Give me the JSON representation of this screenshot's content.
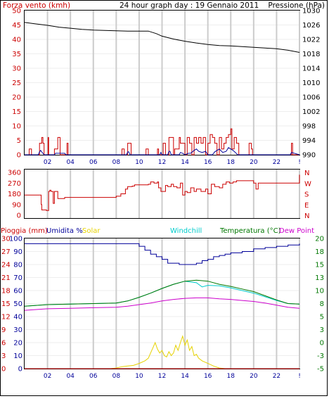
{
  "colors": {
    "wind": "#cc0000",
    "gust": "#cc0000",
    "pressure": "#000000",
    "direction": "#cc0000",
    "humidity": "#000099",
    "solar": "#e6d200",
    "windchill": "#00cccc",
    "temperature": "#007700",
    "dewpoint": "#cc00cc",
    "rain": "#cc0000",
    "grid": "#cccccc",
    "xaxis": "#000099"
  },
  "header": {
    "left_label": "Forza vento (kmh)",
    "title": "24 hour graph day : 19 Gennaio 2011",
    "right_label": "Pressione (hPa)"
  },
  "x_tick_labels": [
    "02",
    "04",
    "06",
    "08",
    "10",
    "12",
    "14",
    "16",
    "18",
    "20",
    "22",
    "!"
  ],
  "panel2": {
    "dir_letters": [
      "N",
      "W",
      "S",
      "E",
      "N"
    ]
  },
  "panel3": {
    "legend": {
      "rain": "Pioggia (mm)",
      "humidity": "Umidita %",
      "solar": "Solar",
      "windchill": "Windchill",
      "temperature": "Temperatura (°C)",
      "dewpoint": "Dew Point"
    }
  },
  "chart_data": [
    {
      "type": "line",
      "title": "24 hour graph day : 19 Gennaio 2011",
      "ylabel": "Forza vento (kmh)",
      "ylabel_right": "Pressione (hPa)",
      "xlim": [
        0,
        24
      ],
      "ylim": [
        0,
        50
      ],
      "ylim_right": [
        990,
        1030
      ],
      "y_ticks": [
        0,
        5,
        10,
        15,
        20,
        25,
        30,
        35,
        40,
        45,
        50
      ],
      "y_ticks_right": [
        990,
        994,
        998,
        1002,
        1006,
        1010,
        1014,
        1018,
        1022,
        1026,
        1030
      ],
      "grid": true,
      "series": [
        {
          "name": "Pressione (hPa)",
          "axis": "right",
          "x": [
            0,
            1,
            2,
            3,
            4,
            5,
            6,
            7,
            8,
            9,
            10,
            10.8,
            11.5,
            12,
            13,
            14,
            15,
            16,
            17,
            18,
            19,
            20,
            21,
            22,
            23,
            24
          ],
          "y": [
            1026.7,
            1026.3,
            1025.9,
            1025.4,
            1025.1,
            1024.8,
            1024.6,
            1024.5,
            1024.4,
            1024.3,
            1024.3,
            1024.3,
            1023.6,
            1022.9,
            1022.1,
            1021.5,
            1021.0,
            1020.6,
            1020.3,
            1020.2,
            1020.0,
            1019.8,
            1019.6,
            1019.4,
            1019.0,
            1018.4
          ]
        },
        {
          "name": "Forza vento (kmh)",
          "x": [
            0,
            0.3,
            0.4,
            0.5,
            0.6,
            1.2,
            1.3,
            1.4,
            1.5,
            1.6,
            1.7,
            2.0,
            2.05,
            2.1,
            2.2,
            2.5,
            2.6,
            2.8,
            2.9,
            3.0,
            3.1,
            3.6,
            3.7,
            3.8,
            4.8,
            6.5,
            8.4,
            8.5,
            8.6,
            8.7,
            8.9,
            9.0,
            9.2,
            9.3,
            10.5,
            10.6,
            10.7,
            10.8,
            11.5,
            11.6,
            11.7,
            12.0,
            12.1,
            12.2,
            12.3,
            12.5,
            12.6,
            12.8,
            13.0,
            13.1,
            13.3,
            13.5,
            13.6,
            13.8,
            14.0,
            14.2,
            14.4,
            14.6,
            14.8,
            15.0,
            15.2,
            15.4,
            15.6,
            15.8,
            16.0,
            16.2,
            16.4,
            16.6,
            16.8,
            17.0,
            17.2,
            17.4,
            17.6,
            17.8,
            18.0,
            18.1,
            18.3,
            18.5,
            18.7,
            18.8,
            19.5,
            19.6,
            19.8,
            19.9,
            23.0,
            23.1,
            23.3,
            23.4,
            24
          ],
          "y": [
            0,
            0,
            2,
            2,
            0,
            0,
            4,
            4,
            6,
            4,
            0,
            0,
            6,
            0,
            0,
            0,
            2,
            2,
            6,
            6,
            0,
            0,
            4,
            0,
            0,
            0,
            0,
            2,
            2,
            0,
            0,
            4,
            4,
            0,
            0,
            2,
            2,
            0,
            0,
            2,
            0,
            0,
            4,
            4,
            0,
            0,
            6,
            6,
            0,
            2,
            2,
            6,
            4,
            4,
            0,
            6,
            4,
            0,
            6,
            4,
            6,
            4,
            6,
            0,
            4,
            7,
            6,
            4,
            0,
            6,
            2,
            4,
            6,
            7,
            9,
            2,
            6,
            4,
            0,
            0,
            0,
            4,
            2,
            0,
            0,
            0,
            4,
            0,
            0
          ]
        },
        {
          "name": "gust",
          "x": [
            0,
            1.2,
            1.3,
            1.4,
            1.5,
            1.6,
            1.7,
            2,
            2.6,
            2.7,
            3.5,
            3.6,
            4,
            7,
            8.9,
            9,
            9.1,
            9.2,
            11,
            11.8,
            11.9,
            12,
            12.5,
            12.6,
            12.7,
            12.8,
            13,
            13.5,
            13.6,
            13.8,
            14,
            14.3,
            14.5,
            14.8,
            15.0,
            15.2,
            15.5,
            15.8,
            16.0,
            16.4,
            16.6,
            17.0,
            17.3,
            17.6,
            17.8,
            18.0,
            18.2,
            18.4,
            18.6,
            18.8,
            19.2,
            20,
            22,
            23.2,
            23.3,
            24
          ],
          "y": [
            0,
            0,
            1,
            1.5,
            1,
            0.5,
            0,
            0,
            0,
            0.5,
            0.5,
            0,
            0,
            0,
            0,
            1,
            1,
            0,
            0,
            0,
            0.8,
            0,
            0,
            1.2,
            1.2,
            0,
            0,
            0,
            0.8,
            0.5,
            0,
            0.5,
            0.5,
            1.5,
            2,
            1.2,
            0.8,
            1.2,
            0,
            0,
            1,
            2,
            0.8,
            1.2,
            2.5,
            2,
            1.5,
            0.8,
            0,
            0,
            0,
            0,
            0,
            0,
            0.8,
            0
          ]
        }
      ]
    },
    {
      "type": "line",
      "ylabel": "direction",
      "xlim": [
        0,
        24
      ],
      "ylim": [
        0,
        360
      ],
      "y_ticks": [
        0,
        90,
        180,
        270,
        360
      ],
      "grid": true,
      "series": [
        {
          "name": "direction",
          "x": [
            0,
            1.0,
            1.4,
            1.45,
            1.5,
            1.9,
            2.0,
            2.1,
            2.2,
            2.3,
            2.5,
            2.6,
            2.7,
            2.9,
            3.0,
            3.3,
            3.5,
            3.7,
            5.5,
            6.0,
            7.5,
            8.0,
            8.4,
            8.6,
            8.8,
            9.0,
            9.4,
            9.6,
            10.0,
            10.8,
            11.0,
            11.3,
            11.6,
            11.7,
            11.9,
            12.0,
            12.3,
            12.5,
            12.8,
            13.0,
            13.3,
            13.6,
            13.8,
            14.0,
            14.2,
            14.5,
            14.8,
            15.0,
            15.4,
            15.8,
            16.0,
            16.3,
            16.6,
            17.0,
            17.3,
            17.6,
            17.9,
            18.2,
            18.5,
            19.0,
            19.5,
            19.8,
            20.0,
            20.2,
            20.4,
            21.0,
            22.0,
            23.0,
            23.5,
            23.8,
            24
          ],
          "y": [
            170,
            170,
            170,
            90,
            45,
            40,
            40,
            200,
            210,
            200,
            100,
            200,
            200,
            140,
            140,
            140,
            150,
            150,
            150,
            150,
            150,
            160,
            180,
            180,
            220,
            240,
            245,
            255,
            255,
            260,
            280,
            270,
            280,
            230,
            200,
            200,
            250,
            240,
            260,
            240,
            230,
            270,
            170,
            200,
            190,
            230,
            200,
            220,
            200,
            220,
            180,
            260,
            240,
            230,
            260,
            280,
            270,
            280,
            290,
            290,
            290,
            290,
            270,
            220,
            270,
            270,
            270,
            270,
            270,
            270,
            340
          ]
        }
      ]
    },
    {
      "type": "line",
      "xlim": [
        0,
        24
      ],
      "ylim_left_humidity": [
        0,
        100
      ],
      "ylim_right_temperature": [
        -5,
        20
      ],
      "y_ticks_left_rain": [
        0,
        3,
        6,
        9,
        12,
        15,
        18,
        21,
        24,
        27,
        30
      ],
      "y_ticks_left_humidity": [
        0,
        10,
        20,
        30,
        40,
        50,
        60,
        70,
        80,
        90,
        100
      ],
      "y_ticks_right": [
        -5,
        -3,
        0,
        3,
        5,
        8,
        10,
        13,
        15,
        18,
        20
      ],
      "grid": true,
      "series": [
        {
          "name": "Umidita %",
          "x": [
            0,
            1,
            2,
            3,
            4,
            5,
            6,
            7,
            8,
            9,
            10,
            10.5,
            11,
            11.5,
            12,
            12.5,
            13,
            13.5,
            14,
            14.5,
            15,
            15.5,
            16,
            16.5,
            17,
            17.5,
            18,
            19,
            20,
            21,
            22,
            23,
            24
          ],
          "y": [
            96,
            96,
            96,
            96,
            96,
            96,
            96,
            96,
            96,
            96,
            94,
            91,
            88,
            86,
            84,
            81,
            81,
            80,
            80,
            80,
            81,
            83,
            84,
            86,
            87,
            88,
            89,
            90,
            92,
            93,
            94,
            95,
            96
          ]
        },
        {
          "name": "Solar",
          "x": [
            0,
            7.5,
            8,
            8.5,
            9,
            9.5,
            10,
            10.5,
            10.8,
            11,
            11.2,
            11.4,
            11.6,
            11.8,
            12,
            12.2,
            12.4,
            12.6,
            12.8,
            13,
            13.2,
            13.4,
            13.6,
            13.8,
            14,
            14.2,
            14.4,
            14.6,
            14.8,
            15,
            15.2,
            15.5,
            16,
            16.5,
            17,
            17.5,
            24
          ],
          "y": [
            0,
            0,
            0.5,
            1.5,
            2,
            2.5,
            4,
            6,
            8,
            12,
            16,
            20,
            15,
            12,
            14,
            10,
            9,
            13,
            10,
            12,
            18,
            14,
            20,
            25,
            18,
            22,
            14,
            17,
            10,
            11,
            8,
            6,
            4,
            2,
            0.5,
            0,
            0
          ]
        },
        {
          "name": "Windchill",
          "x": [
            0,
            2,
            4,
            6,
            8,
            9,
            10,
            11,
            12,
            13,
            14,
            15,
            15.5,
            16,
            17,
            18,
            19,
            20,
            21,
            22,
            23,
            24
          ],
          "y": [
            7,
            7.3,
            7.4,
            7.5,
            7.6,
            8.0,
            8.7,
            9.5,
            10.4,
            11.2,
            11.8,
            11.5,
            10.7,
            11.0,
            10.9,
            10.5,
            10.0,
            9.5,
            8.8,
            8.1,
            7.5,
            7.4
          ]
        },
        {
          "name": "Temperatura (°C)",
          "x": [
            0,
            2,
            4,
            6,
            8,
            9,
            10,
            11,
            12,
            13,
            14,
            15,
            16,
            17,
            18,
            19,
            20,
            21,
            22,
            23,
            24
          ],
          "y": [
            7,
            7.3,
            7.4,
            7.5,
            7.6,
            8.0,
            8.7,
            9.5,
            10.4,
            11.2,
            11.8,
            12.0,
            11.8,
            11.2,
            10.8,
            10.3,
            9.8,
            9.0,
            8.2,
            7.5,
            7.4
          ]
        },
        {
          "name": "Dew Point",
          "x": [
            0,
            2,
            4,
            6,
            8,
            9,
            10,
            11,
            12,
            13,
            14,
            15,
            16,
            17,
            18,
            19,
            20,
            21,
            22,
            23,
            24
          ],
          "y": [
            6.2,
            6.5,
            6.6,
            6.7,
            6.8,
            7.0,
            7.3,
            7.6,
            8.0,
            8.3,
            8.5,
            8.6,
            8.6,
            8.4,
            8.3,
            8.1,
            7.9,
            7.6,
            7.2,
            6.8,
            6.6
          ]
        },
        {
          "name": "Pioggia (mm)",
          "x": [
            0,
            24
          ],
          "y": [
            0,
            0
          ]
        }
      ]
    }
  ]
}
